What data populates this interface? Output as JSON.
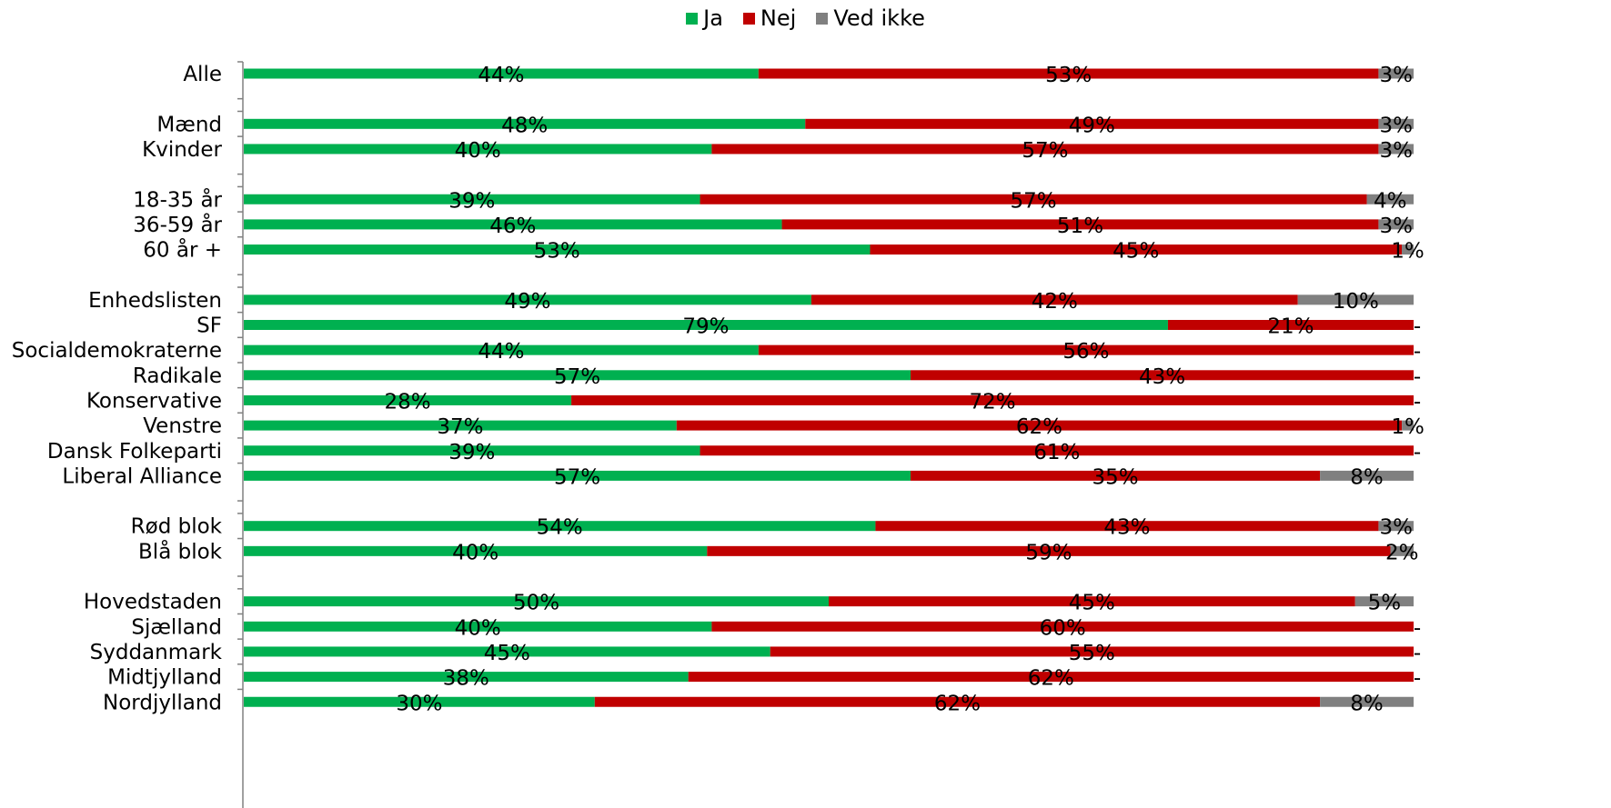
{
  "chart_data": {
    "type": "bar",
    "orientation": "horizontal",
    "stacked": true,
    "legend_position": "top",
    "categories": [
      "Alle",
      "Mænd",
      "Kvinder",
      "18-35 år",
      "36-59 år",
      "60 år +",
      "Enhedslisten",
      "SF",
      "Socialdemokraterne",
      "Radikale",
      "Konservative",
      "Venstre",
      "Dansk Folkeparti",
      "Liberal Alliance",
      "Rød blok",
      "Blå blok",
      "Hovedstaden",
      "Sjælland",
      "Syddanmark",
      "Midtjylland",
      "Nordjylland"
    ],
    "groups": [
      [
        0
      ],
      [
        1,
        2
      ],
      [
        3,
        4,
        5
      ],
      [
        6,
        7,
        8,
        9,
        10,
        11,
        12,
        13
      ],
      [
        14,
        15
      ],
      [
        16,
        17,
        18,
        19,
        20
      ]
    ],
    "series": [
      {
        "name": "Ja",
        "color": "#00b050",
        "values": [
          44,
          48,
          40,
          39,
          46,
          53,
          49,
          79,
          44,
          57,
          28,
          37,
          39,
          57,
          54,
          40,
          50,
          40,
          45,
          38,
          30
        ],
        "labels": [
          "44%",
          "48%",
          "40%",
          "39%",
          "46%",
          "53%",
          "49%",
          "79%",
          "44%",
          "57%",
          "28%",
          "37%",
          "39%",
          "57%",
          "54%",
          "40%",
          "50%",
          "40%",
          "45%",
          "38%",
          "30%"
        ]
      },
      {
        "name": "Nej",
        "color": "#c00000",
        "values": [
          53,
          49,
          57,
          57,
          51,
          45,
          42,
          21,
          56,
          43,
          72,
          62,
          61,
          35,
          43,
          59,
          45,
          60,
          55,
          62,
          62
        ],
        "labels": [
          "53%",
          "49%",
          "57%",
          "57%",
          "51%",
          "45%",
          "42%",
          "21%",
          "56%",
          "43%",
          "72%",
          "62%",
          "61%",
          "35%",
          "43%",
          "59%",
          "45%",
          "60%",
          "55%",
          "62%",
          "62%"
        ]
      },
      {
        "name": "Ved ikke",
        "color": "#808080",
        "values": [
          3,
          3,
          3,
          4,
          3,
          1,
          10,
          0,
          0,
          0,
          0,
          1,
          0,
          8,
          3,
          2,
          5,
          0,
          0,
          0,
          8
        ],
        "labels": [
          "3%",
          "3%",
          "3%",
          "4%",
          "3%",
          "1%",
          "10%",
          "-",
          "-",
          "-",
          "-",
          "1%",
          "-",
          "8%",
          "3%",
          "2%",
          "5%",
          "-",
          "-",
          "-",
          "8%"
        ]
      }
    ],
    "xlim": [
      0,
      100
    ],
    "grid": false
  }
}
